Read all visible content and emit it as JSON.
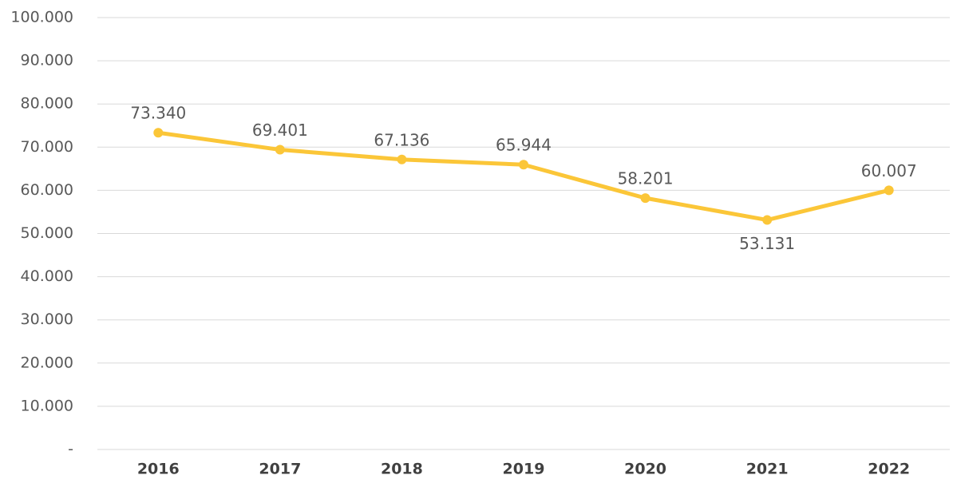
{
  "chart_data": {
    "type": "line",
    "categories": [
      "2016",
      "2017",
      "2018",
      "2019",
      "2020",
      "2021",
      "2022"
    ],
    "series": [
      {
        "color": "#fbc638",
        "values": [
          73340,
          69401,
          67136,
          65944,
          58201,
          53131,
          60007
        ],
        "value_labels": [
          "73.340",
          "69.401",
          "67.136",
          "65.944",
          "58.201",
          "53.131",
          "60.007"
        ]
      }
    ],
    "ylim": [
      0,
      100000
    ],
    "yticks": [
      {
        "value": 0,
        "label": "-"
      },
      {
        "value": 10000,
        "label": "10.000"
      },
      {
        "value": 20000,
        "label": "20.000"
      },
      {
        "value": 30000,
        "label": "30.000"
      },
      {
        "value": 40000,
        "label": "40.000"
      },
      {
        "value": 50000,
        "label": "50.000"
      },
      {
        "value": 60000,
        "label": "60.000"
      },
      {
        "value": 70000,
        "label": "70.000"
      },
      {
        "value": 80000,
        "label": "80.000"
      },
      {
        "value": 90000,
        "label": "90.000"
      },
      {
        "value": 100000,
        "label": "100.000"
      }
    ],
    "grid": true
  }
}
